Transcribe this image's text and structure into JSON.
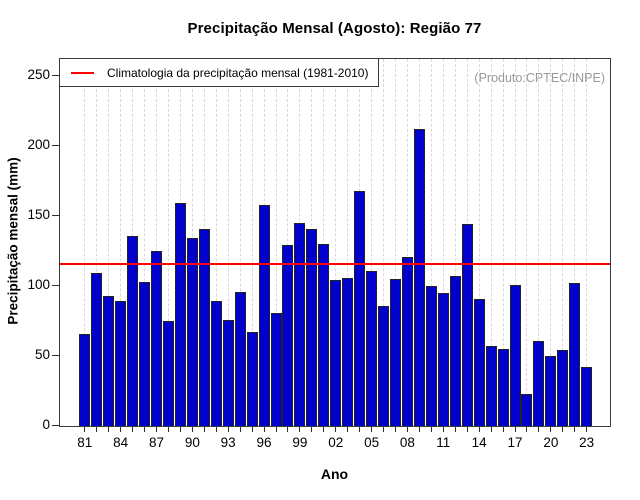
{
  "chart_data": {
    "type": "bar",
    "title": "Precipitação Mensal (Agosto): Região 77",
    "xlabel": "Ano",
    "ylabel": "Precipitação mensal (mm)",
    "annotation": "(Produto:CPTEC/INPE)",
    "legend": {
      "label": "Climatologia da precipitação mensal (1981-2010)",
      "line_color": "#ff0000",
      "position": "top-left"
    },
    "climatology_value": 115,
    "ylim": [
      0,
      250
    ],
    "y_ticks": [
      0,
      50,
      100,
      150,
      200,
      250
    ],
    "x_tick_labels": [
      "81",
      "84",
      "87",
      "90",
      "93",
      "96",
      "99",
      "02",
      "05",
      "08",
      "11",
      "14",
      "17",
      "20",
      "23"
    ],
    "x_tick_step": 3,
    "years": [
      1981,
      1982,
      1983,
      1984,
      1985,
      1986,
      1987,
      1988,
      1989,
      1990,
      1991,
      1992,
      1993,
      1994,
      1995,
      1996,
      1997,
      1998,
      1999,
      2000,
      2001,
      2002,
      2003,
      2004,
      2005,
      2006,
      2007,
      2008,
      2009,
      2010,
      2011,
      2012,
      2013,
      2014,
      2015,
      2016,
      2017,
      2018,
      2019,
      2020,
      2021,
      2022,
      2023
    ],
    "values": [
      66,
      109,
      93,
      89,
      136,
      103,
      125,
      75,
      159,
      134,
      141,
      89,
      76,
      96,
      67,
      158,
      81,
      129,
      145,
      141,
      130,
      104,
      106,
      168,
      111,
      86,
      105,
      121,
      212,
      100,
      95,
      107,
      144,
      91,
      57,
      55,
      101,
      23,
      61,
      50,
      54,
      102,
      42
    ],
    "bar_color": "#0101CD",
    "bar_border_color": "#222222",
    "grid": "vertical-dashed"
  }
}
